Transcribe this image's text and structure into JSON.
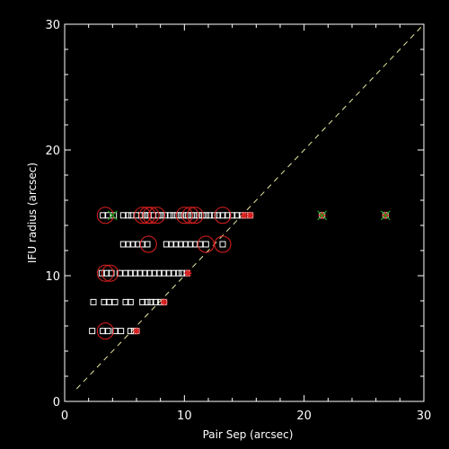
{
  "chart_data": {
    "type": "scatter",
    "title": "",
    "xlabel": "Pair Sep (arcsec)",
    "ylabel": "IFU radius (arcsec)",
    "xlim": [
      0,
      30
    ],
    "ylim": [
      0,
      30
    ],
    "x_ticks": [
      0,
      10,
      20,
      30
    ],
    "y_ticks": [
      0,
      10,
      20,
      30
    ],
    "x_tick_labels": [
      "0",
      "10",
      "20",
      "30"
    ],
    "y_tick_labels": [
      "0",
      "10",
      "20",
      "30"
    ],
    "grid": false,
    "legend": "none",
    "reference_line": {
      "style": "dashed",
      "color": "#e8e8a0",
      "from": [
        1,
        1
      ],
      "to": [
        30,
        30
      ]
    },
    "colors": {
      "background": "#000000",
      "axes": "#ffffff",
      "square": "#ffffff",
      "circle": "#e02020",
      "cross": "#e02020",
      "star": "#20a020"
    },
    "series": [
      {
        "marker": "square",
        "points": [
          [
            2.3,
            5.6
          ],
          [
            3.2,
            5.6
          ],
          [
            3.6,
            5.6
          ],
          [
            4.2,
            5.6
          ],
          [
            4.7,
            5.6
          ],
          [
            5.5,
            5.6
          ],
          [
            5.8,
            5.6
          ],
          [
            6.0,
            5.6
          ],
          [
            2.4,
            7.9
          ],
          [
            3.3,
            7.9
          ],
          [
            3.7,
            7.9
          ],
          [
            4.2,
            7.9
          ],
          [
            5.1,
            7.9
          ],
          [
            5.5,
            7.9
          ],
          [
            6.5,
            7.9
          ],
          [
            6.9,
            7.9
          ],
          [
            7.2,
            7.9
          ],
          [
            7.6,
            7.9
          ],
          [
            8.0,
            7.9
          ],
          [
            8.3,
            7.9
          ],
          [
            3.1,
            10.2
          ],
          [
            3.5,
            10.2
          ],
          [
            3.9,
            10.2
          ],
          [
            4.6,
            10.2
          ],
          [
            5.1,
            10.2
          ],
          [
            5.5,
            10.2
          ],
          [
            5.9,
            10.2
          ],
          [
            6.3,
            10.2
          ],
          [
            6.7,
            10.2
          ],
          [
            7.1,
            10.2
          ],
          [
            7.5,
            10.2
          ],
          [
            7.9,
            10.2
          ],
          [
            8.3,
            10.2
          ],
          [
            8.7,
            10.2
          ],
          [
            9.1,
            10.2
          ],
          [
            9.5,
            10.2
          ],
          [
            9.8,
            10.2
          ],
          [
            10.2,
            10.2
          ],
          [
            4.9,
            12.5
          ],
          [
            5.3,
            12.5
          ],
          [
            5.7,
            12.5
          ],
          [
            6.1,
            12.5
          ],
          [
            6.5,
            12.5
          ],
          [
            6.9,
            12.5
          ],
          [
            8.5,
            12.5
          ],
          [
            8.9,
            12.5
          ],
          [
            9.3,
            12.5
          ],
          [
            9.7,
            12.5
          ],
          [
            10.1,
            12.5
          ],
          [
            10.5,
            12.5
          ],
          [
            10.9,
            12.5
          ],
          [
            11.3,
            12.5
          ],
          [
            11.8,
            12.5
          ],
          [
            13.2,
            12.5
          ],
          [
            3.2,
            14.8
          ],
          [
            3.6,
            14.8
          ],
          [
            4.1,
            14.8
          ],
          [
            4.9,
            14.8
          ],
          [
            5.3,
            14.8
          ],
          [
            5.6,
            14.8
          ],
          [
            6.0,
            14.8
          ],
          [
            6.4,
            14.8
          ],
          [
            6.7,
            14.8
          ],
          [
            7.0,
            14.8
          ],
          [
            7.4,
            14.8
          ],
          [
            7.8,
            14.8
          ],
          [
            8.1,
            14.8
          ],
          [
            8.4,
            14.8
          ],
          [
            8.8,
            14.8
          ],
          [
            9.1,
            14.8
          ],
          [
            9.4,
            14.8
          ],
          [
            9.7,
            14.8
          ],
          [
            10.0,
            14.8
          ],
          [
            10.3,
            14.8
          ],
          [
            10.6,
            14.8
          ],
          [
            10.9,
            14.8
          ],
          [
            11.2,
            14.8
          ],
          [
            11.5,
            14.8
          ],
          [
            11.8,
            14.8
          ],
          [
            12.1,
            14.8
          ],
          [
            12.5,
            14.8
          ],
          [
            12.8,
            14.8
          ],
          [
            13.2,
            14.8
          ],
          [
            13.6,
            14.8
          ],
          [
            14.0,
            14.8
          ],
          [
            14.4,
            14.8
          ],
          [
            14.8,
            14.8
          ],
          [
            15.1,
            14.8
          ],
          [
            15.5,
            14.8
          ],
          [
            21.5,
            14.8
          ],
          [
            26.8,
            14.8
          ]
        ]
      },
      {
        "marker": "circle",
        "points": [
          [
            3.4,
            5.6
          ],
          [
            3.4,
            10.2
          ],
          [
            3.8,
            10.2
          ],
          [
            7.0,
            12.5
          ],
          [
            11.8,
            12.5
          ],
          [
            13.2,
            12.5
          ],
          [
            3.4,
            14.8
          ],
          [
            6.5,
            14.8
          ],
          [
            6.9,
            14.8
          ],
          [
            7.2,
            14.8
          ],
          [
            7.7,
            14.8
          ],
          [
            10.0,
            14.8
          ],
          [
            10.5,
            14.8
          ],
          [
            10.9,
            14.8
          ],
          [
            13.2,
            14.8
          ]
        ]
      },
      {
        "marker": "cross",
        "points": [
          [
            6.0,
            5.6
          ],
          [
            8.3,
            7.9
          ],
          [
            10.3,
            10.2
          ],
          [
            15.0,
            14.8
          ],
          [
            15.5,
            14.8
          ],
          [
            21.5,
            14.8
          ],
          [
            26.8,
            14.8
          ]
        ]
      },
      {
        "marker": "star",
        "points": [
          [
            4.0,
            14.8
          ],
          [
            21.5,
            14.8
          ],
          [
            26.8,
            14.8
          ]
        ]
      }
    ]
  }
}
